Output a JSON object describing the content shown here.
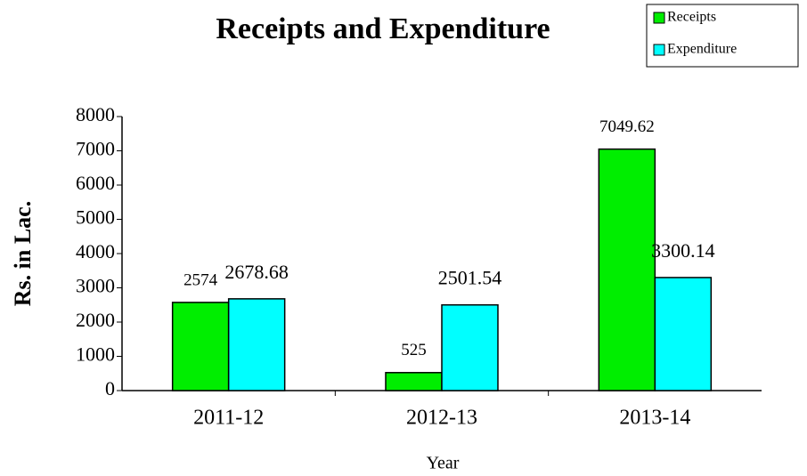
{
  "chart_data": {
    "type": "bar",
    "title": "Receipts and Expenditure",
    "xlabel": "Year",
    "ylabel": "Rs. in Lac.",
    "categories": [
      "2011-12",
      "2012-13",
      "2013-14"
    ],
    "series": [
      {
        "name": "Receipts",
        "color": "#00ee00",
        "values": [
          2574,
          525,
          7049.62
        ]
      },
      {
        "name": "Expenditure",
        "color": "#00ffff",
        "values": [
          2678.68,
          2501.54,
          3300.14
        ]
      }
    ],
    "ylim": [
      0,
      8000
    ],
    "yticks": [
      0,
      1000,
      2000,
      3000,
      4000,
      5000,
      6000,
      7000,
      8000
    ],
    "legend": "upper right"
  }
}
